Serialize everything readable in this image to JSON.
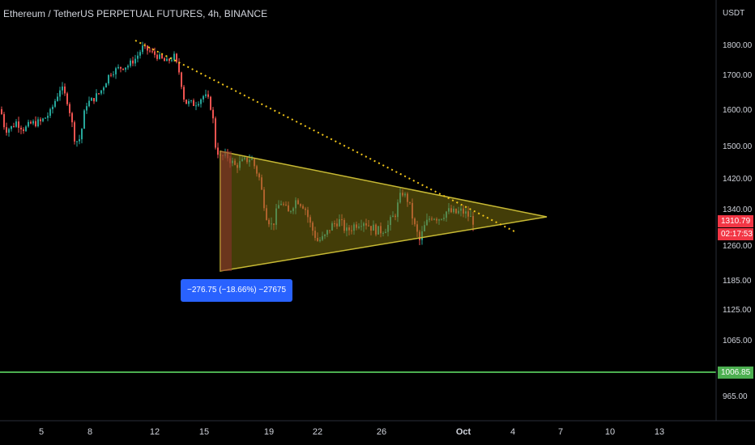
{
  "header": {
    "title": "Ethereum / TetherUS PERPETUAL FUTURES, 4h, BINANCE"
  },
  "colors": {
    "up": "#26a69a",
    "down": "#ef5350",
    "triangle_fill": "#7a6f0f",
    "triangle_line": "#c7b934",
    "trendline": "#f0c419",
    "support": "#4caf50",
    "measure_fill": "#2962ff",
    "price_label": "#f23645"
  },
  "overlays": {
    "current_price": "1310.79",
    "countdown": "02:17:53",
    "support_price": "1006.85",
    "measure_label": "−276.75 (−18.66%) −27675"
  },
  "chart_data": {
    "type": "candlestick",
    "title": "Ethereum / TetherUS PERPETUAL FUTURES, 4h, BINANCE",
    "y_axis_unit": "USDT",
    "y_ticks": [
      "1800.00",
      "1700.00",
      "1600.00",
      "1500.00",
      "1420.00",
      "1340.00",
      "1260.00",
      "1185.00",
      "1125.00",
      "1065.00",
      "965.00"
    ],
    "x_ticks": [
      "5",
      "8",
      "12",
      "15",
      "19",
      "22",
      "26",
      "Oct",
      "4",
      "7",
      "10",
      "13"
    ],
    "price_path": [
      [
        1,
        1600
      ],
      [
        4,
        1560
      ],
      [
        8,
        1545
      ],
      [
        14,
        1550
      ],
      [
        20,
        1565
      ],
      [
        30,
        1545
      ],
      [
        38,
        1560
      ],
      [
        50,
        1565
      ],
      [
        62,
        1590
      ],
      [
        75,
        1665
      ],
      [
        84,
        1620
      ],
      [
        93,
        1510
      ],
      [
        99,
        1520
      ],
      [
        106,
        1615
      ],
      [
        113,
        1625
      ],
      [
        124,
        1650
      ],
      [
        136,
        1705
      ],
      [
        146,
        1720
      ],
      [
        158,
        1730
      ],
      [
        168,
        1755
      ],
      [
        176,
        1790
      ],
      [
        186,
        1775
      ],
      [
        195,
        1760
      ],
      [
        205,
        1740
      ],
      [
        215,
        1760
      ],
      [
        222,
        1700
      ],
      [
        228,
        1620
      ],
      [
        240,
        1615
      ],
      [
        252,
        1640
      ],
      [
        259,
        1620
      ],
      [
        263,
        1570
      ],
      [
        266,
        1500
      ],
      [
        272,
        1470
      ],
      [
        280,
        1475
      ],
      [
        290,
        1450
      ],
      [
        300,
        1460
      ],
      [
        310,
        1470
      ],
      [
        320,
        1420
      ],
      [
        328,
        1330
      ],
      [
        336,
        1300
      ],
      [
        346,
        1360
      ],
      [
        356,
        1330
      ],
      [
        366,
        1365
      ],
      [
        376,
        1345
      ],
      [
        384,
        1300
      ],
      [
        392,
        1270
      ],
      [
        400,
        1275
      ],
      [
        408,
        1300
      ],
      [
        418,
        1315
      ],
      [
        428,
        1290
      ],
      [
        438,
        1305
      ],
      [
        448,
        1315
      ],
      [
        458,
        1300
      ],
      [
        468,
        1290
      ],
      [
        478,
        1300
      ],
      [
        488,
        1330
      ],
      [
        496,
        1385
      ],
      [
        504,
        1360
      ],
      [
        512,
        1300
      ],
      [
        518,
        1270
      ],
      [
        524,
        1300
      ],
      [
        532,
        1325
      ],
      [
        542,
        1320
      ],
      [
        552,
        1335
      ],
      [
        562,
        1330
      ],
      [
        570,
        1335
      ],
      [
        578,
        1325
      ],
      [
        586,
        1310
      ]
    ],
    "support_level": 1006.85,
    "annotations": [
      "symmetrical triangle",
      "descending trendline (dotted)",
      "measure: −276.75 (−18.66%) −27675"
    ]
  }
}
